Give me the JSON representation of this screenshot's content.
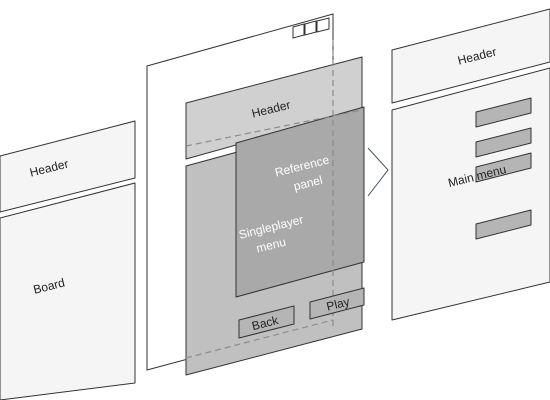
{
  "screens": {
    "game": {
      "header_label": "Header",
      "board_label": "Board"
    },
    "singleplayer": {
      "header_label": "Header",
      "menu_label_line1": "Singleplayer",
      "menu_label_line2": "menu",
      "back_label": "Back",
      "play_label": "Play"
    },
    "reference": {
      "label_line1": "Reference",
      "label_line2": "panel"
    },
    "main_menu": {
      "header_label": "Header",
      "menu_label": "Main menu"
    }
  },
  "colors": {
    "panel_white": "#f5f5f5",
    "panel_light_gray": "#d0d0d0",
    "panel_mid_gray": "#b8b8b8",
    "panel_overlay": "#a9a9a9",
    "button_gray": "#b5b5b5",
    "stroke": "#333333",
    "dashed": "#8c8c8c",
    "arrow": "#445566"
  },
  "icons": {
    "window_controls": "window-controls-icon",
    "transition_arrow": "chevron-right-icon"
  }
}
